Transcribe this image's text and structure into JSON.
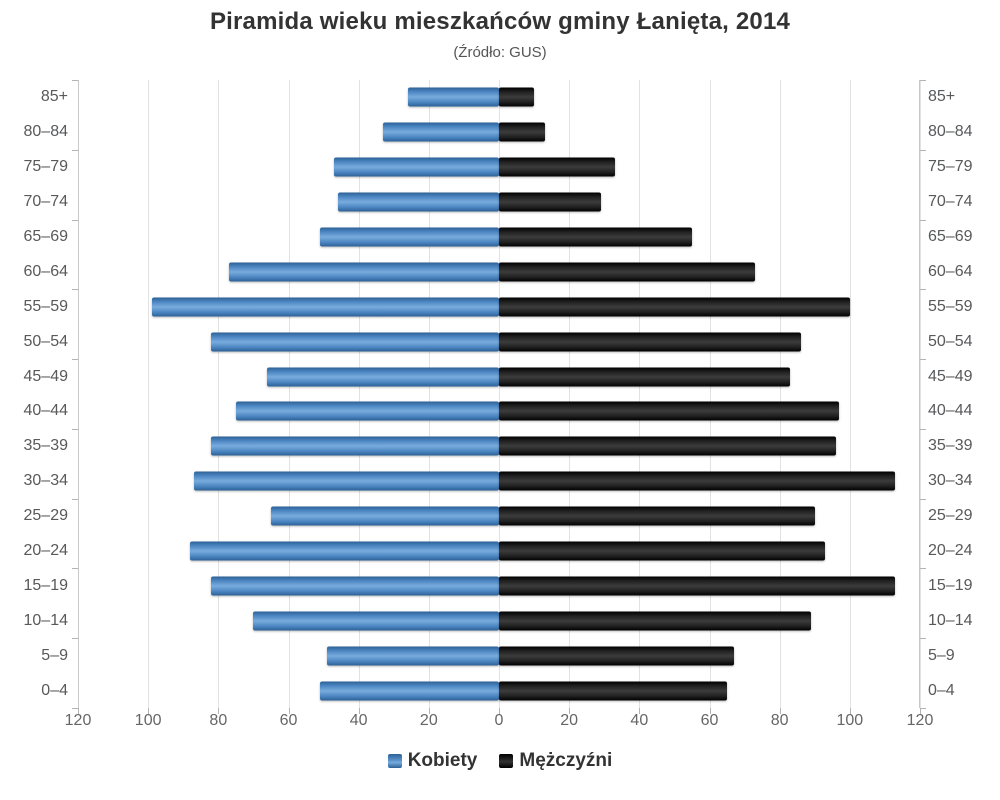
{
  "title": "Piramida wieku mieszkańców gminy Łanięta, 2014",
  "subtitle": "(Źródło: GUS)",
  "colors": {
    "kobiety": "#4b85c1",
    "mezczyzni": "#1b1b1b",
    "grid": "#e2e2e2",
    "axis": "#c9c9c9",
    "tick": "#b4b4b4",
    "label": "#58595b",
    "title_text": "#333333"
  },
  "chart_data": {
    "type": "bar",
    "variant": "population-pyramid",
    "orientation": "horizontal",
    "title": "Piramida wieku mieszkańców gminy Łanięta, 2014",
    "subtitle": "(Źródło: GUS)",
    "categories": [
      "85+",
      "80–84",
      "75–79",
      "70–74",
      "65–69",
      "60–64",
      "55–59",
      "50–54",
      "45–49",
      "40–44",
      "35–39",
      "30–34",
      "25–29",
      "20–24",
      "15–19",
      "10–14",
      "5–9",
      "0–4"
    ],
    "categories_order": "top-to-bottom",
    "series": [
      {
        "name": "Kobiety",
        "side": "left",
        "color": "#4b85c1",
        "values": [
          26,
          33,
          47,
          46,
          51,
          77,
          99,
          82,
          66,
          75,
          82,
          87,
          65,
          88,
          82,
          70,
          49,
          51
        ]
      },
      {
        "name": "Mężczyźni",
        "side": "right",
        "color": "#1b1b1b",
        "values": [
          10,
          13,
          33,
          29,
          55,
          73,
          100,
          86,
          83,
          97,
          96,
          113,
          90,
          93,
          113,
          89,
          67,
          65
        ]
      }
    ],
    "axis_max": 120,
    "x_tick_labels": [
      "120",
      "100",
      "80",
      "60",
      "40",
      "20",
      "0",
      "20",
      "40",
      "60",
      "80",
      "100",
      "120"
    ],
    "grid": true,
    "legend_position": "bottom",
    "xlabel": "",
    "ylabel": ""
  }
}
